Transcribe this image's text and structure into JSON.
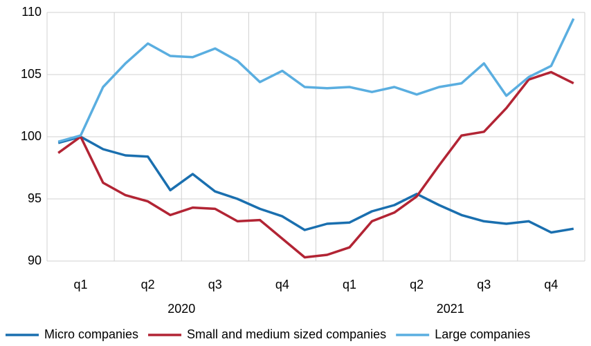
{
  "chart_data": {
    "type": "line",
    "categories": [
      null,
      "q1",
      null,
      null,
      "q2",
      null,
      null,
      "q3",
      null,
      null,
      "q4",
      null,
      null,
      "q1",
      null,
      null,
      "q2",
      null,
      null,
      "q3",
      null,
      null,
      "q4",
      null
    ],
    "groups": [
      {
        "label": "2020",
        "span": 12
      },
      {
        "label": "2021",
        "span": 12
      }
    ],
    "series": [
      {
        "name": "Micro companies",
        "color": "#1a6faf",
        "values": [
          99.5,
          100,
          99.0,
          98.5,
          98.4,
          95.7,
          97.0,
          95.6,
          95.0,
          94.2,
          93.6,
          92.5,
          93.0,
          93.1,
          94.0,
          94.5,
          95.4,
          94.5,
          93.7,
          93.2,
          93.0,
          93.2,
          92.3,
          92.6
        ]
      },
      {
        "name": "Small and medium sized companies",
        "color": "#b22434",
        "values": [
          98.7,
          100,
          96.3,
          95.3,
          94.8,
          93.7,
          94.3,
          94.2,
          93.2,
          93.3,
          91.8,
          90.3,
          90.5,
          91.1,
          93.2,
          93.9,
          95.2,
          97.7,
          100.1,
          100.4,
          102.3,
          104.6,
          105.2,
          104.3
        ]
      },
      {
        "name": "Large companies",
        "color": "#5aaee0",
        "values": [
          99.6,
          100.1,
          104.0,
          105.9,
          107.5,
          106.5,
          106.4,
          107.1,
          106.1,
          104.4,
          105.3,
          104.0,
          103.9,
          104.0,
          103.6,
          104.0,
          103.4,
          104.0,
          104.3,
          105.9,
          103.3,
          104.8,
          105.7,
          109.5
        ]
      }
    ],
    "ylim": [
      90,
      110
    ],
    "yticks": [
      90,
      95,
      100,
      105,
      110
    ],
    "grid": true,
    "legend": "bottom"
  }
}
